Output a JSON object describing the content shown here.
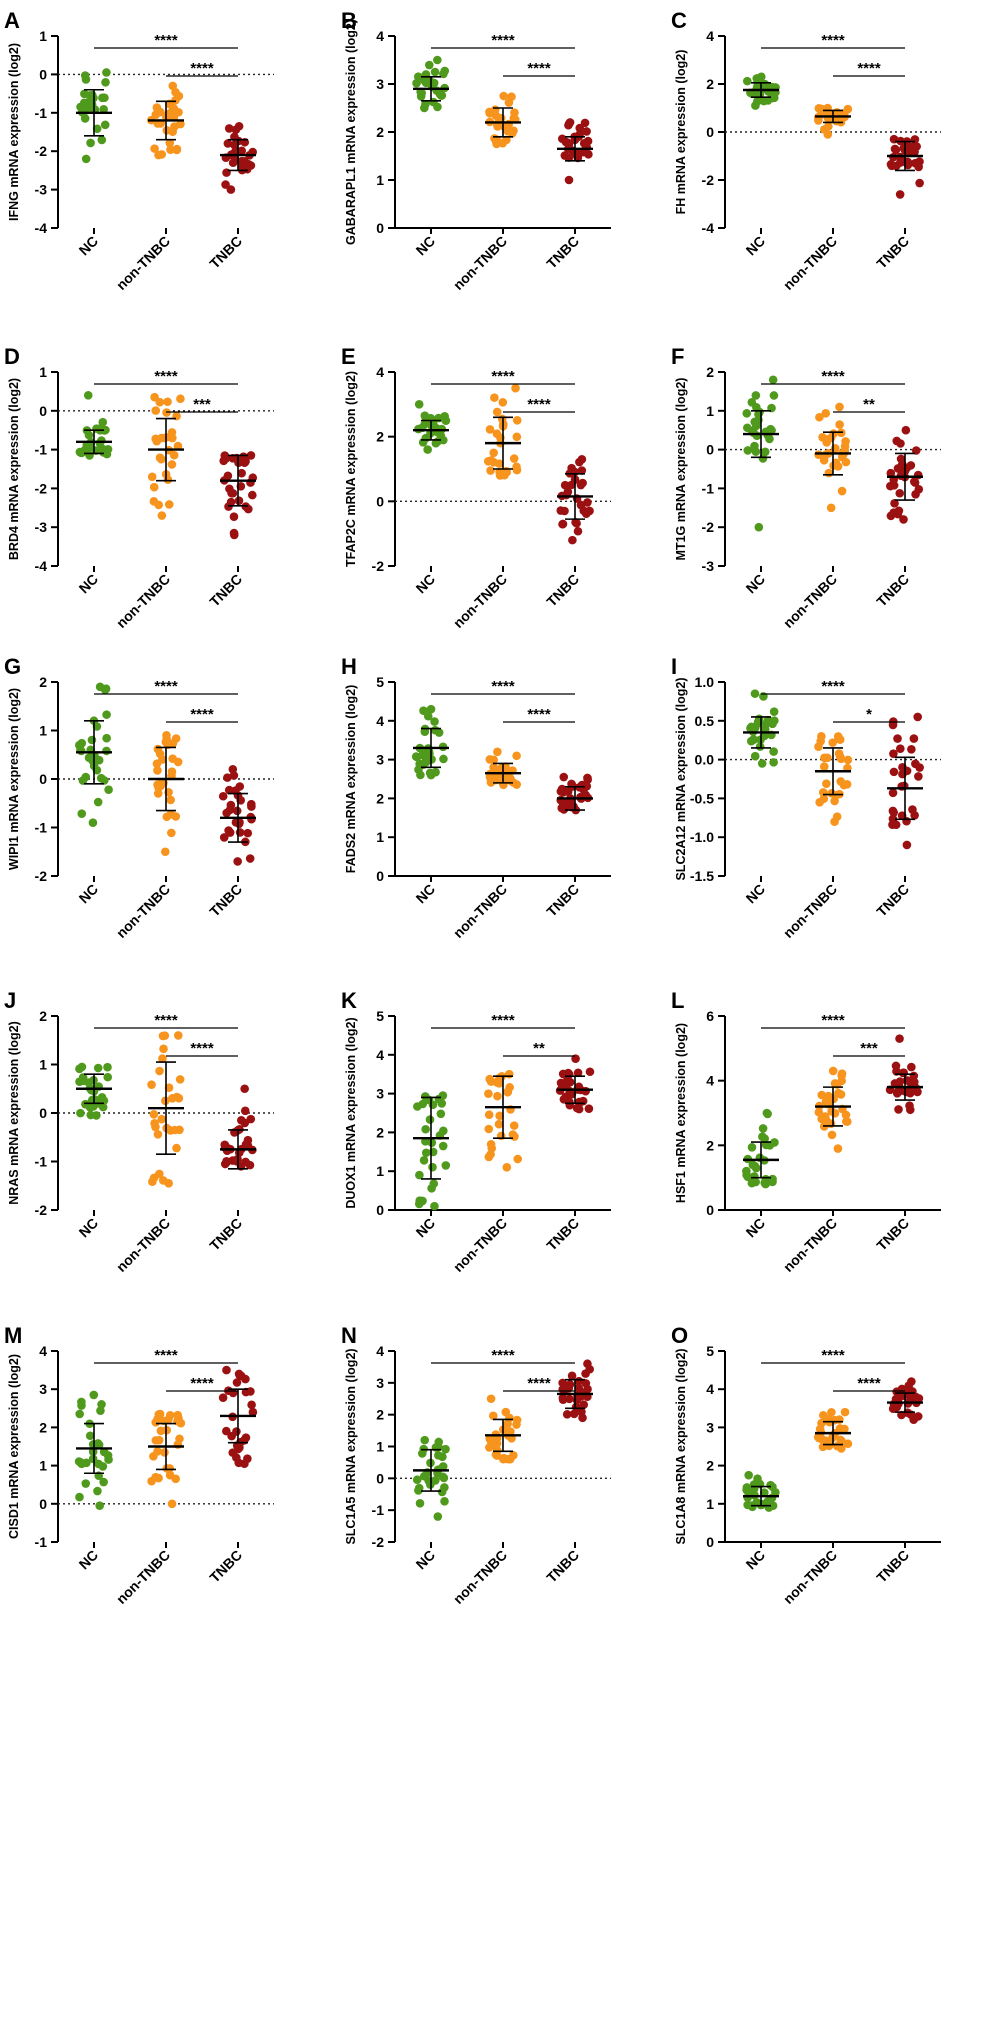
{
  "figure": {
    "categories": [
      "NC",
      "non-TNBC",
      "TNBC"
    ],
    "colors": {
      "NC": "#4f9a1c",
      "non-TNBC": "#f7941d",
      "TNBC": "#9b1111",
      "axis": "#000000"
    }
  },
  "chart_data": [
    {
      "letter": "A",
      "type": "scatter",
      "ylabel": "IFNG mRNA expression (log2)",
      "ylim": [
        -4,
        1
      ],
      "yticks": [
        "1",
        "0",
        "-1",
        "-2",
        "-3",
        "-4"
      ],
      "refline": 0,
      "groups": [
        {
          "name": "NC",
          "mean": -1.0,
          "sd": 0.6,
          "min": -2.2,
          "max": 0.05
        },
        {
          "name": "non-TNBC",
          "mean": -1.2,
          "sd": 0.5,
          "min": -2.1,
          "max": -0.3
        },
        {
          "name": "TNBC",
          "mean": -2.1,
          "sd": 0.4,
          "min": -3.0,
          "max": -1.35
        }
      ],
      "sig": [
        {
          "from": 0,
          "to": 2,
          "label": "****"
        },
        {
          "from": 1,
          "to": 2,
          "label": "****"
        }
      ]
    },
    {
      "letter": "B",
      "type": "scatter",
      "ylabel": "GABARAPL1 mRNA expression (log2)",
      "ylim": [
        0,
        4
      ],
      "yticks": [
        "4",
        "3",
        "2",
        "1",
        "0"
      ],
      "refline": null,
      "groups": [
        {
          "name": "NC",
          "mean": 2.9,
          "sd": 0.25,
          "min": 2.5,
          "max": 3.5
        },
        {
          "name": "non-TNBC",
          "mean": 2.2,
          "sd": 0.3,
          "min": 1.75,
          "max": 2.75
        },
        {
          "name": "TNBC",
          "mean": 1.65,
          "sd": 0.25,
          "min": 1.0,
          "max": 2.2
        }
      ],
      "sig": [
        {
          "from": 0,
          "to": 2,
          "label": "****"
        },
        {
          "from": 1,
          "to": 2,
          "label": "****"
        }
      ]
    },
    {
      "letter": "C",
      "type": "scatter",
      "ylabel": "FH mRNA expression (log2)",
      "ylim": [
        -4,
        4
      ],
      "yticks": [
        "4",
        "2",
        "0",
        "-2",
        "-4"
      ],
      "refline": 0,
      "groups": [
        {
          "name": "NC",
          "mean": 1.75,
          "sd": 0.3,
          "min": 1.1,
          "max": 2.3
        },
        {
          "name": "non-TNBC",
          "mean": 0.65,
          "sd": 0.25,
          "min": -0.1,
          "max": 1.0
        },
        {
          "name": "TNBC",
          "mean": -1.0,
          "sd": 0.6,
          "min": -2.6,
          "max": -0.3
        }
      ],
      "sig": [
        {
          "from": 0,
          "to": 2,
          "label": "****"
        },
        {
          "from": 1,
          "to": 2,
          "label": "****"
        }
      ]
    },
    {
      "letter": "D",
      "type": "scatter",
      "ylabel": "BRD4 mRNA expression (log2)",
      "ylim": [
        -4,
        1
      ],
      "yticks": [
        "1",
        "0",
        "-1",
        "-2",
        "-3",
        "-4"
      ],
      "refline": 0,
      "groups": [
        {
          "name": "NC",
          "mean": -0.8,
          "sd": 0.3,
          "min": -1.15,
          "max": 0.4
        },
        {
          "name": "non-TNBC",
          "mean": -1.0,
          "sd": 0.8,
          "min": -2.7,
          "max": 0.35
        },
        {
          "name": "TNBC",
          "mean": -1.8,
          "sd": 0.65,
          "min": -3.2,
          "max": -1.15
        }
      ],
      "sig": [
        {
          "from": 0,
          "to": 2,
          "label": "****"
        },
        {
          "from": 1,
          "to": 2,
          "label": "***"
        }
      ]
    },
    {
      "letter": "E",
      "type": "scatter",
      "ylabel": "TFAP2C mRNA expression (log2)",
      "ylim": [
        -2,
        4
      ],
      "yticks": [
        "4",
        "2",
        "0",
        "-2"
      ],
      "refline": 0,
      "groups": [
        {
          "name": "NC",
          "mean": 2.2,
          "sd": 0.3,
          "min": 1.6,
          "max": 3.0
        },
        {
          "name": "non-TNBC",
          "mean": 1.8,
          "sd": 0.8,
          "min": 0.8,
          "max": 3.5
        },
        {
          "name": "TNBC",
          "mean": 0.15,
          "sd": 0.7,
          "min": -1.2,
          "max": 1.3
        }
      ],
      "sig": [
        {
          "from": 0,
          "to": 2,
          "label": "****"
        },
        {
          "from": 1,
          "to": 2,
          "label": "****"
        }
      ]
    },
    {
      "letter": "F",
      "type": "scatter",
      "ylabel": "MT1G mRNA expression (log2)",
      "ylim": [
        -3,
        2
      ],
      "yticks": [
        "2",
        "1",
        "0",
        "-1",
        "-2",
        "-3"
      ],
      "refline": 0,
      "groups": [
        {
          "name": "NC",
          "mean": 0.4,
          "sd": 0.6,
          "min": -2.0,
          "max": 1.8
        },
        {
          "name": "non-TNBC",
          "mean": -0.1,
          "sd": 0.55,
          "min": -1.5,
          "max": 1.1
        },
        {
          "name": "TNBC",
          "mean": -0.7,
          "sd": 0.6,
          "min": -1.8,
          "max": 0.5
        }
      ],
      "sig": [
        {
          "from": 0,
          "to": 2,
          "label": "****"
        },
        {
          "from": 1,
          "to": 2,
          "label": "**"
        }
      ]
    },
    {
      "letter": "G",
      "type": "scatter",
      "ylabel": "WIPI1 mRNA expression (log2)",
      "ylim": [
        -2,
        2
      ],
      "yticks": [
        "2",
        "1",
        "0",
        "-1",
        "-2"
      ],
      "refline": 0,
      "groups": [
        {
          "name": "NC",
          "mean": 0.55,
          "sd": 0.65,
          "min": -0.9,
          "max": 1.9
        },
        {
          "name": "non-TNBC",
          "mean": 0.0,
          "sd": 0.65,
          "min": -1.5,
          "max": 0.9
        },
        {
          "name": "TNBC",
          "mean": -0.8,
          "sd": 0.5,
          "min": -1.7,
          "max": 0.2
        }
      ],
      "sig": [
        {
          "from": 0,
          "to": 2,
          "label": "****"
        },
        {
          "from": 1,
          "to": 2,
          "label": "****"
        }
      ]
    },
    {
      "letter": "H",
      "type": "scatter",
      "ylabel": "FADS2 mRNA expression (log2)",
      "ylim": [
        0,
        5
      ],
      "yticks": [
        "5",
        "4",
        "3",
        "2",
        "1",
        "0"
      ],
      "refline": null,
      "groups": [
        {
          "name": "NC",
          "mean": 3.3,
          "sd": 0.5,
          "min": 2.6,
          "max": 4.3
        },
        {
          "name": "non-TNBC",
          "mean": 2.65,
          "sd": 0.25,
          "min": 2.35,
          "max": 3.2
        },
        {
          "name": "TNBC",
          "mean": 2.0,
          "sd": 0.3,
          "min": 1.7,
          "max": 2.55
        }
      ],
      "sig": [
        {
          "from": 0,
          "to": 2,
          "label": "****"
        },
        {
          "from": 1,
          "to": 2,
          "label": "****"
        }
      ]
    },
    {
      "letter": "I",
      "type": "scatter",
      "ylabel": "SLC2A12 mRNA expression (log2)",
      "ylim": [
        -1.5,
        1.0
      ],
      "yticks": [
        "1.0",
        "0.5",
        "0.0",
        "-0.5",
        "-1.0",
        "-1.5"
      ],
      "refline": 0,
      "groups": [
        {
          "name": "NC",
          "mean": 0.35,
          "sd": 0.2,
          "min": -0.05,
          "max": 0.85
        },
        {
          "name": "non-TNBC",
          "mean": -0.15,
          "sd": 0.3,
          "min": -0.8,
          "max": 0.3
        },
        {
          "name": "TNBC",
          "mean": -0.37,
          "sd": 0.4,
          "min": -1.1,
          "max": 0.55
        }
      ],
      "sig": [
        {
          "from": 0,
          "to": 2,
          "label": "****"
        },
        {
          "from": 1,
          "to": 2,
          "label": "*"
        }
      ]
    },
    {
      "letter": "J",
      "type": "scatter",
      "ylabel": "NRAS mRNA expression (log2)",
      "ylim": [
        -2,
        2
      ],
      "yticks": [
        "2",
        "1",
        "0",
        "-1",
        "-2"
      ],
      "refline": 0,
      "groups": [
        {
          "name": "NC",
          "mean": 0.5,
          "sd": 0.3,
          "min": -0.05,
          "max": 0.95
        },
        {
          "name": "non-TNBC",
          "mean": 0.1,
          "sd": 0.95,
          "min": -1.45,
          "max": 1.6
        },
        {
          "name": "TNBC",
          "mean": -0.75,
          "sd": 0.4,
          "min": -1.1,
          "max": 0.5
        }
      ],
      "sig": [
        {
          "from": 0,
          "to": 2,
          "label": "****"
        },
        {
          "from": 1,
          "to": 2,
          "label": "****"
        }
      ]
    },
    {
      "letter": "K",
      "type": "scatter",
      "ylabel": "DUOX1 mRNA expression (log2)",
      "ylim": [
        0,
        5
      ],
      "yticks": [
        "5",
        "4",
        "3",
        "2",
        "1",
        "0"
      ],
      "refline": null,
      "groups": [
        {
          "name": "NC",
          "mean": 1.85,
          "sd": 1.05,
          "min": 0.1,
          "max": 2.95
        },
        {
          "name": "non-TNBC",
          "mean": 2.65,
          "sd": 0.8,
          "min": 1.1,
          "max": 3.5
        },
        {
          "name": "TNBC",
          "mean": 3.1,
          "sd": 0.35,
          "min": 2.6,
          "max": 3.9
        }
      ],
      "sig": [
        {
          "from": 0,
          "to": 2,
          "label": "****"
        },
        {
          "from": 1,
          "to": 2,
          "label": "**"
        }
      ]
    },
    {
      "letter": "L",
      "type": "scatter",
      "ylabel": "HSF1 mRNA expression (log2)",
      "ylim": [
        0,
        6
      ],
      "yticks": [
        "6",
        "4",
        "2",
        "0"
      ],
      "refline": null,
      "groups": [
        {
          "name": "NC",
          "mean": 1.55,
          "sd": 0.55,
          "min": 0.8,
          "max": 3.0
        },
        {
          "name": "non-TNBC",
          "mean": 3.2,
          "sd": 0.6,
          "min": 1.9,
          "max": 4.3
        },
        {
          "name": "TNBC",
          "mean": 3.8,
          "sd": 0.4,
          "min": 3.1,
          "max": 5.3
        }
      ],
      "sig": [
        {
          "from": 0,
          "to": 2,
          "label": "****"
        },
        {
          "from": 1,
          "to": 2,
          "label": "***"
        }
      ]
    },
    {
      "letter": "M",
      "type": "scatter",
      "ylabel": "CISD1 mRNA expression (log2)",
      "ylim": [
        -1,
        4
      ],
      "yticks": [
        "4",
        "3",
        "2",
        "1",
        "0",
        "-1"
      ],
      "refline": 0,
      "groups": [
        {
          "name": "NC",
          "mean": 1.45,
          "sd": 0.65,
          "min": -0.05,
          "max": 2.85
        },
        {
          "name": "non-TNBC",
          "mean": 1.5,
          "sd": 0.6,
          "min": 0.0,
          "max": 2.35
        },
        {
          "name": "TNBC",
          "mean": 2.3,
          "sd": 0.7,
          "min": 1.05,
          "max": 3.5
        }
      ],
      "sig": [
        {
          "from": 0,
          "to": 2,
          "label": "****"
        },
        {
          "from": 1,
          "to": 2,
          "label": "****"
        }
      ]
    },
    {
      "letter": "N",
      "type": "scatter",
      "ylabel": "SLC1A5 mRNA expression (log2)",
      "ylim": [
        -2,
        4
      ],
      "yticks": [
        "4",
        "3",
        "2",
        "1",
        "0",
        "-1",
        "-2"
      ],
      "refline": 0,
      "groups": [
        {
          "name": "NC",
          "mean": 0.25,
          "sd": 0.65,
          "min": -1.2,
          "max": 1.2
        },
        {
          "name": "non-TNBC",
          "mean": 1.35,
          "sd": 0.5,
          "min": 0.6,
          "max": 2.5
        },
        {
          "name": "TNBC",
          "mean": 2.65,
          "sd": 0.45,
          "min": 1.9,
          "max": 3.6
        }
      ],
      "sig": [
        {
          "from": 0,
          "to": 2,
          "label": "****"
        },
        {
          "from": 1,
          "to": 2,
          "label": "****"
        }
      ]
    },
    {
      "letter": "O",
      "type": "scatter",
      "ylabel": "SLC1A8 mRNA expression (log2)",
      "ylim": [
        0,
        5
      ],
      "yticks": [
        "5",
        "4",
        "3",
        "2",
        "1",
        "0"
      ],
      "refline": null,
      "groups": [
        {
          "name": "NC",
          "mean": 1.2,
          "sd": 0.25,
          "min": 0.9,
          "max": 1.75
        },
        {
          "name": "non-TNBC",
          "mean": 2.85,
          "sd": 0.3,
          "min": 2.45,
          "max": 3.4
        },
        {
          "name": "TNBC",
          "mean": 3.65,
          "sd": 0.25,
          "min": 3.2,
          "max": 4.2
        }
      ],
      "sig": [
        {
          "from": 0,
          "to": 2,
          "label": "****"
        },
        {
          "from": 1,
          "to": 2,
          "label": "****"
        }
      ]
    }
  ]
}
